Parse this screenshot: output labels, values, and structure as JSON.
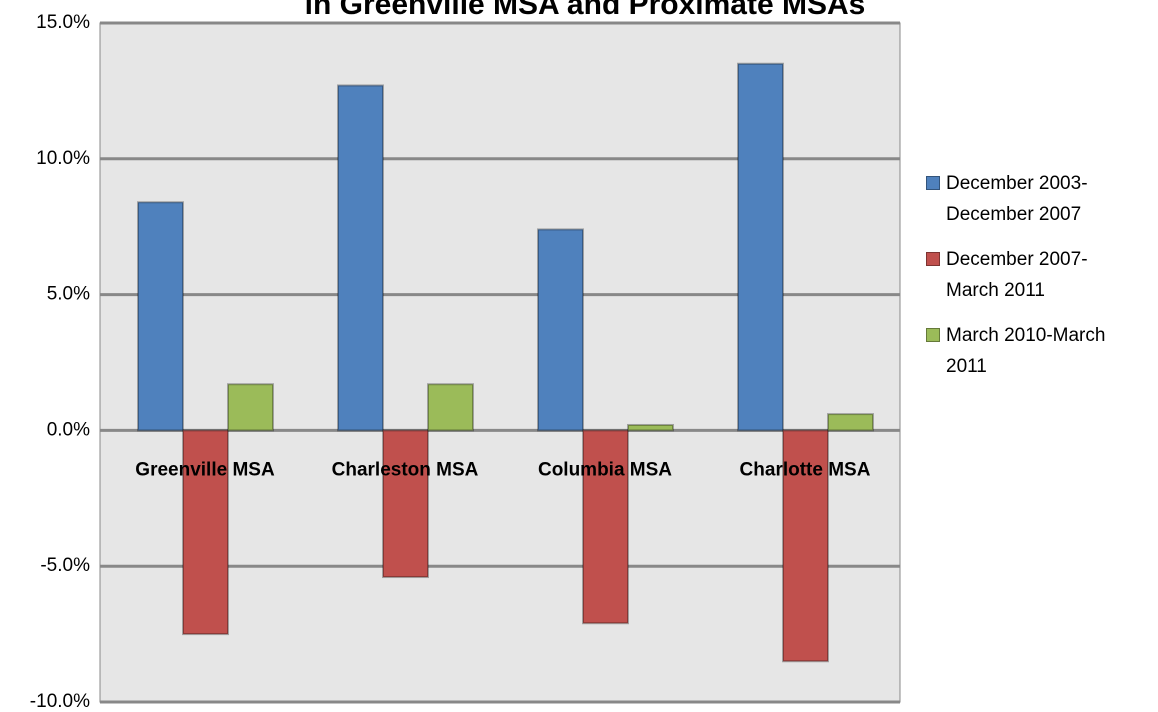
{
  "chart_data": {
    "type": "bar",
    "title": "in Greenville MSA and Proximate  MSAs",
    "categories": [
      "Greenville MSA",
      "Charleston MSA",
      "Columbia MSA",
      "Charlotte MSA"
    ],
    "series": [
      {
        "name": "December 2003-December 2007",
        "color": "#4f81bd",
        "values": [
          8.4,
          12.7,
          7.4,
          13.5
        ]
      },
      {
        "name": "December 2007-March 2011",
        "color": "#c0504d",
        "values": [
          -7.5,
          -5.4,
          -7.1,
          -8.5
        ]
      },
      {
        "name": "March 2010-March 2011",
        "color": "#9bbb59",
        "values": [
          1.7,
          1.7,
          0.2,
          0.6
        ]
      }
    ],
    "ylim": [
      -10,
      15
    ],
    "yticks": [
      {
        "value": -10,
        "label": "-10.0%"
      },
      {
        "value": -5,
        "label": "-5.0%"
      },
      {
        "value": 0,
        "label": "0.0%"
      },
      {
        "value": 5,
        "label": "5.0%"
      },
      {
        "value": 10,
        "label": "10.0%"
      },
      {
        "value": 15,
        "label": "15.0%"
      }
    ],
    "grid": true,
    "legend": "right"
  }
}
